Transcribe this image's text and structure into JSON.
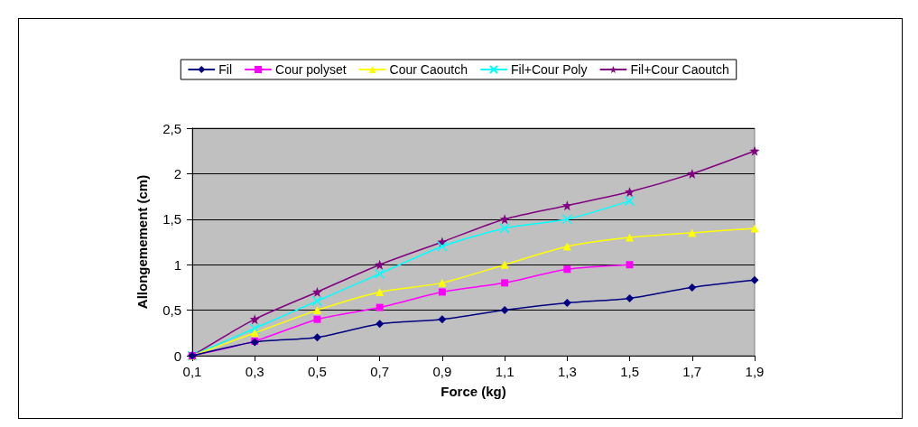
{
  "chart_data": {
    "type": "line",
    "xlabel": "Force (kg)",
    "ylabel": "Allongemement (cm)",
    "categories": [
      "0,1",
      "0,3",
      "0,5",
      "0,7",
      "0,9",
      "1,1",
      "1,3",
      "1,5",
      "1,7",
      "1,9"
    ],
    "series": [
      {
        "name": "Fil",
        "color": "#000080",
        "marker": "diamond",
        "values": [
          0,
          0.15,
          0.2,
          0.35,
          0.4,
          0.5,
          0.58,
          0.63,
          0.75,
          0.83
        ]
      },
      {
        "name": "Cour polyset",
        "color": "#ff00ff",
        "marker": "square",
        "values": [
          0,
          0.16,
          0.4,
          0.53,
          0.7,
          0.8,
          0.95,
          1.0,
          null,
          null
        ]
      },
      {
        "name": "Cour Caoutch",
        "color": "#ffff00",
        "marker": "triangle",
        "values": [
          0,
          0.25,
          0.5,
          0.7,
          0.8,
          1.0,
          1.2,
          1.3,
          1.35,
          1.4
        ]
      },
      {
        "name": "Fil+Cour Poly",
        "color": "#00ffff",
        "marker": "cross",
        "values": [
          0,
          0.3,
          0.6,
          0.9,
          1.2,
          1.4,
          1.5,
          1.7,
          null,
          null
        ]
      },
      {
        "name": "Fil+Cour Caoutch",
        "color": "#800080",
        "marker": "star",
        "values": [
          0,
          0.4,
          0.7,
          1.0,
          1.25,
          1.5,
          1.65,
          1.8,
          2.0,
          2.25
        ]
      }
    ],
    "ylim": [
      0,
      2.5
    ],
    "yticks": [
      0,
      {
        "value": 0.5,
        "label": "0,5"
      },
      1,
      {
        "value": 1.5,
        "label": "1,5"
      },
      2,
      {
        "value": 2.5,
        "label": "2,5"
      }
    ],
    "grid": "y",
    "legend": "top",
    "line_style": "solid"
  }
}
